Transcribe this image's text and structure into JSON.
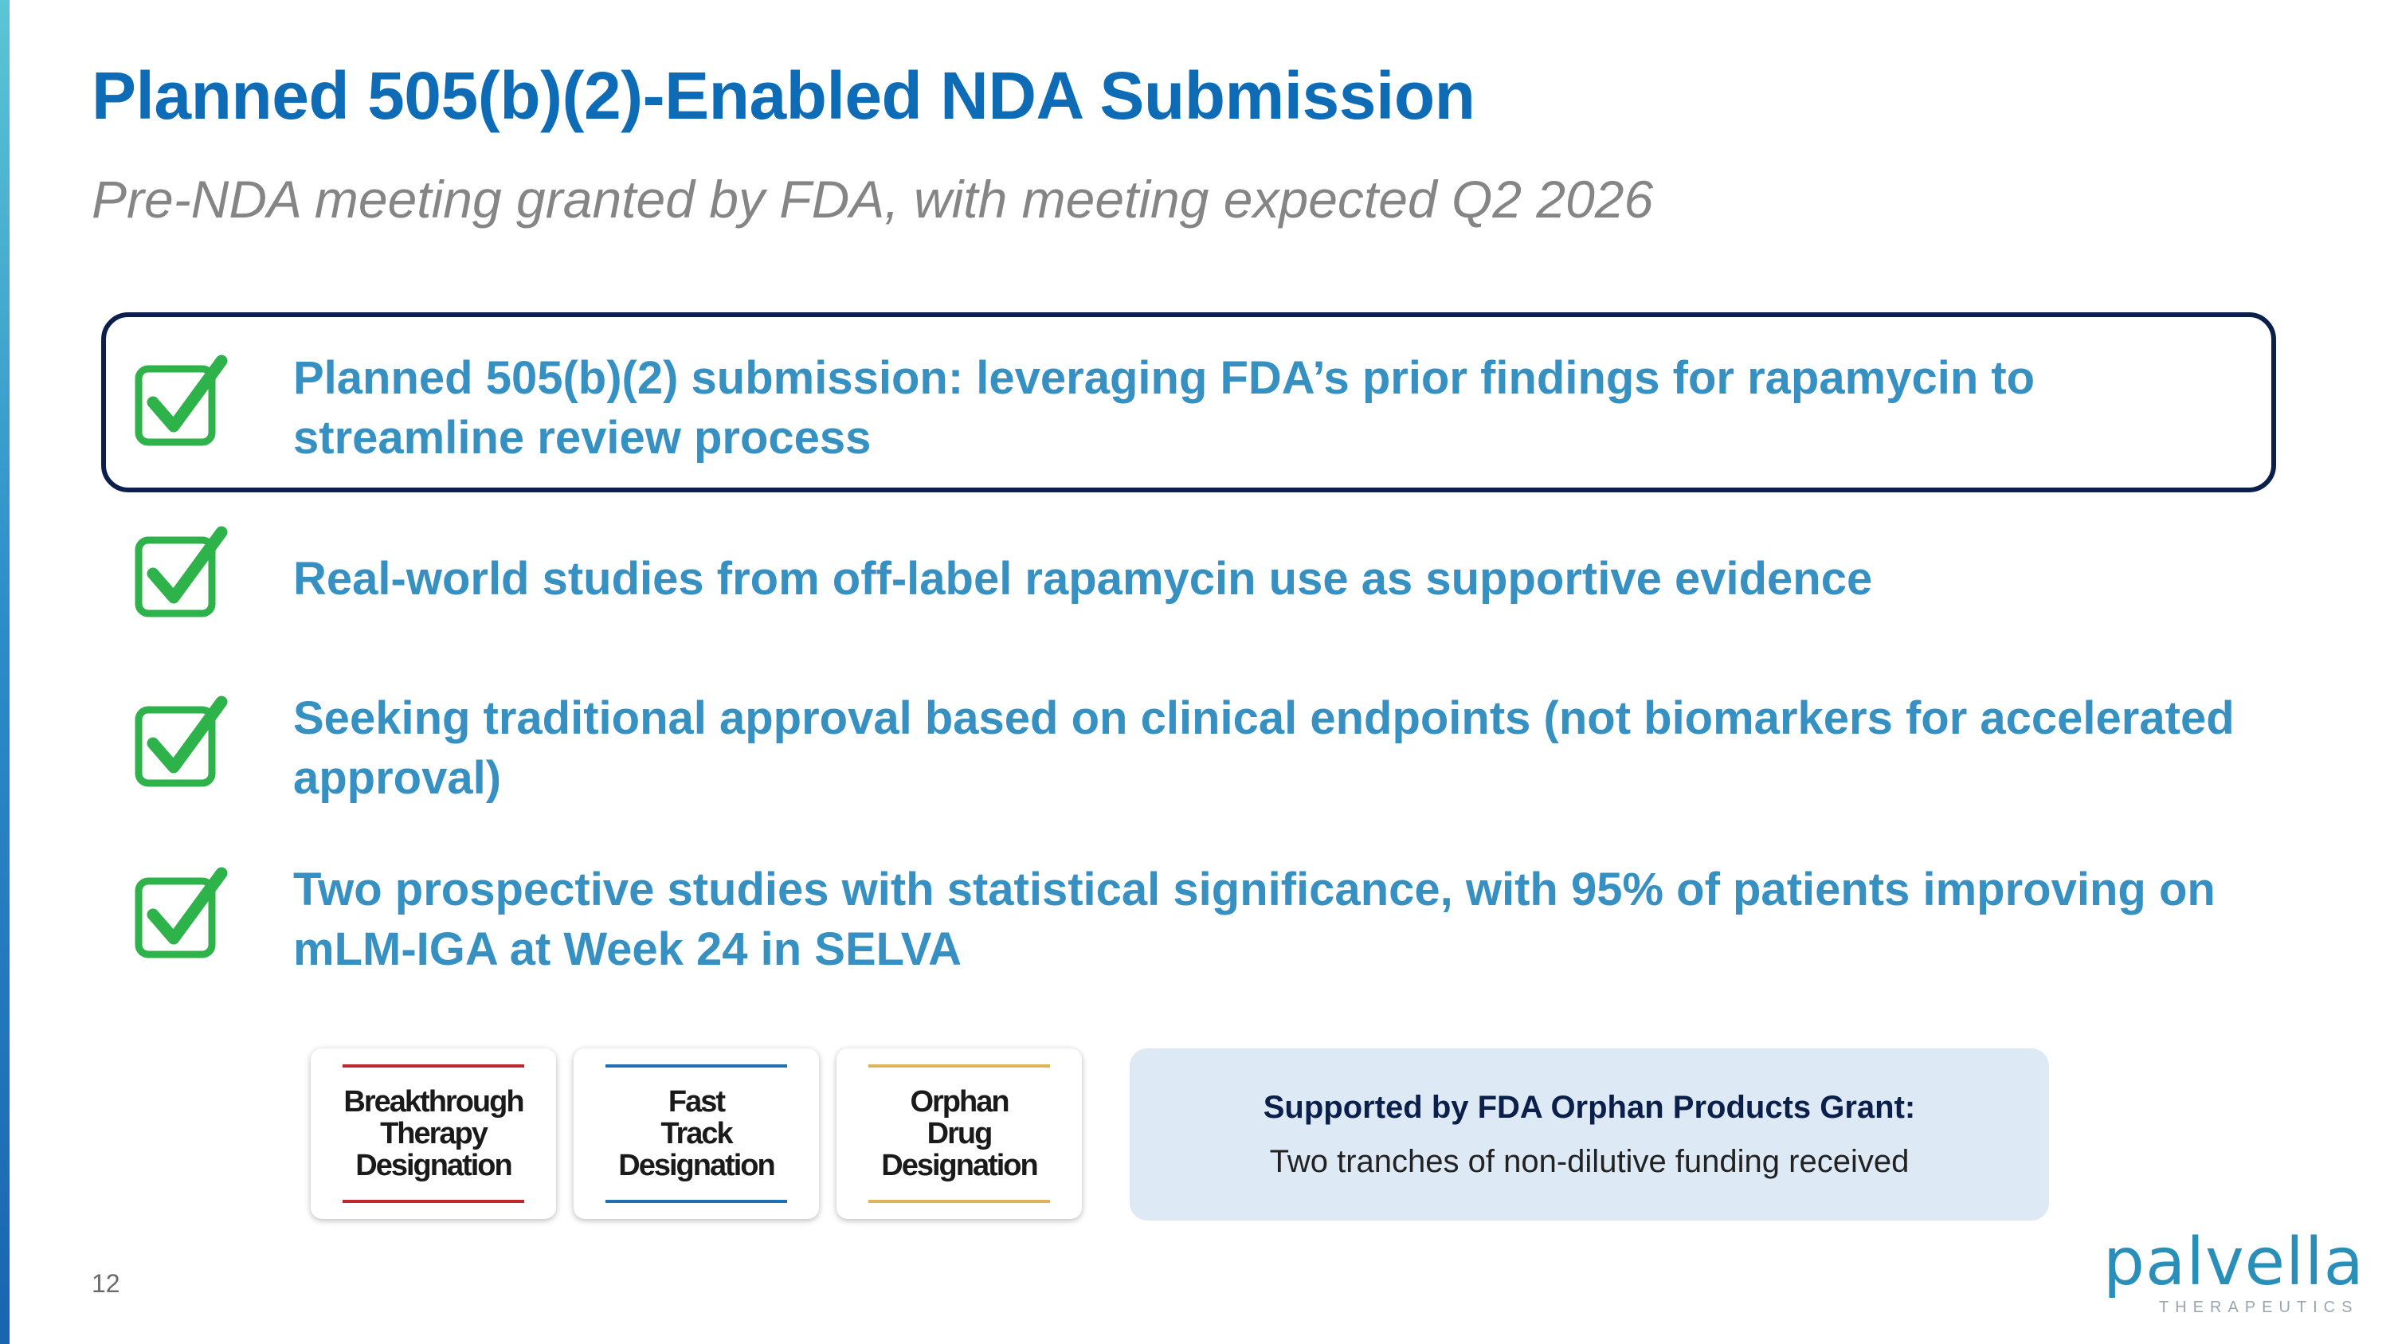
{
  "slide": {
    "title": "Planned 505(b)(2)-Enabled NDA Submission",
    "subtitle": "Pre-NDA meeting granted by FDA, with meeting expected Q2 2026",
    "page_number": "12"
  },
  "points": [
    {
      "text": "Planned 505(b)(2) submission: leveraging FDA’s prior findings for rapamycin to streamline review process",
      "icon": "check-box-icon",
      "highlighted": true
    },
    {
      "text": "Real-world studies from off-label rapamycin use as supportive evidence",
      "icon": "check-box-icon",
      "highlighted": false
    },
    {
      "text": "Seeking traditional approval based on clinical endpoints (not biomarkers for accelerated approval)",
      "icon": "check-box-icon",
      "highlighted": false
    },
    {
      "text": "Two prospective studies with statistical significance, with 95% of patients improving on mLM-IGA at Week 24 in SELVA",
      "icon": "check-box-icon",
      "highlighted": false
    }
  ],
  "designations": [
    {
      "label": "Breakthrough\nTherapy\nDesignation",
      "accent": "#c0272d"
    },
    {
      "label": "Fast\nTrack\nDesignation",
      "accent": "#1f6fb2"
    },
    {
      "label": "Orphan\nDrug\nDesignation",
      "accent": "#e0b25a"
    }
  ],
  "grant": {
    "title": "Supported by FDA Orphan Products Grant:",
    "text": "Two tranches of non-dilutive funding received"
  },
  "logo": {
    "name": "palvella",
    "tagline": "THERAPEUTICS"
  },
  "colors": {
    "title": "#0d6cb5",
    "point_text": "#3691c2",
    "check_green": "#2eb24a",
    "highlight_border": "#0b1f4b",
    "grant_bg": "#dde9f5"
  }
}
